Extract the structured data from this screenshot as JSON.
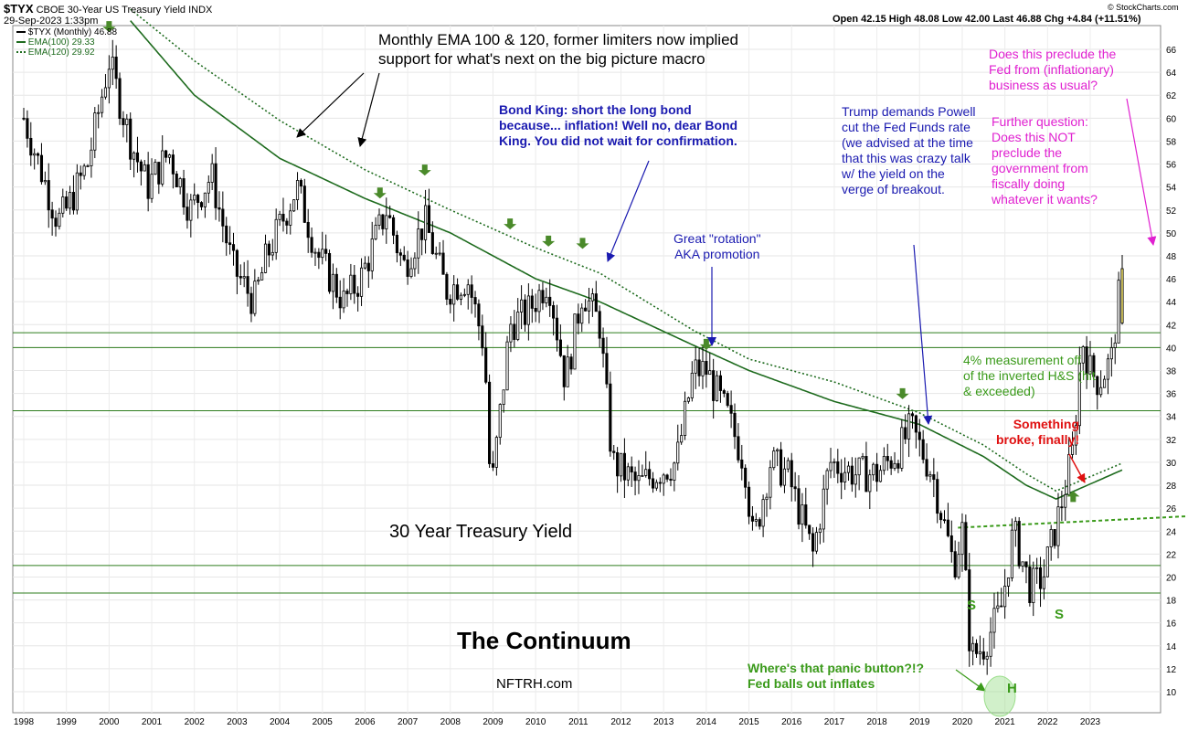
{
  "header": {
    "symbol": "$TYX",
    "name": "CBOE 30-Year US Treasury Yield",
    "exchange": "INDX",
    "date": "29-Sep-2023 1:33pm",
    "ohlc": "Open 42.15  High 48.08  Low 42.00  Last 46.88  Chg +4.84 (+11.51%)",
    "credit": "© StockCharts.com",
    "legend": [
      {
        "label": "$TYX (Monthly) 46.88",
        "color": "#000000"
      },
      {
        "label": "EMA(100) 29.33",
        "color": "#1e6b1e"
      },
      {
        "label": "EMA(120) 29.92",
        "color": "#1e6b1e"
      }
    ]
  },
  "annotations": {
    "ema_note": "Monthly EMA 100 & 120, former limiters now implied\nsupport for what's next on the big picture macro",
    "bond_king": "Bond King: short the long bond\nbecause... inflation! Well no, dear Bond\nKing. You did not wait for confirmation.",
    "rotation": "Great \"rotation\"\nAKA promotion",
    "trump": "Trump demands Powell\ncut the Fed Funds rate\n(we advised at the time\nthat this was crazy talk\nw/ the yield on the\nverge of breakout.",
    "preclude_fed": "Does this preclude the\nFed from (inflationary)\nbusiness as usual?",
    "further_q": "Further question:\nDoes this NOT\npreclude the\ngovernment from\nfiscally doing\nwhatever it wants?",
    "hs_measure": "4% measurement off\nof the inverted H&S (hit\n& exceeded)",
    "broke": "Something\nbroke, finally!",
    "panic": "Where's that panic button?!?\nFed balls out inflates",
    "chart_title": "30 Year Treasury Yield",
    "continuum": "The Continuum",
    "site": "NFTRH.com",
    "s_left": "S",
    "s_right": "S",
    "h": "H"
  },
  "colors": {
    "price": "#000000",
    "ema": "#1e6b1e",
    "hline": "#2e7d1e",
    "green_text": "#3a9a1a",
    "blue_text": "#1a1ab0",
    "magenta": "#e020d0",
    "red_text": "#e01010",
    "arrow_green": "#4a8a2a"
  },
  "chart_data": {
    "type": "candlestick",
    "title": "30 Year Treasury Yield",
    "interval": "monthly",
    "x_ticks": [
      "1998",
      "1999",
      "2000",
      "2001",
      "2002",
      "2003",
      "2004",
      "2005",
      "2006",
      "2007",
      "2008",
      "2009",
      "2010",
      "2011",
      "2012",
      "2013",
      "2014",
      "2015",
      "2016",
      "2017",
      "2018",
      "2019",
      "2020",
      "2021",
      "2022",
      "2023"
    ],
    "y_ticks": [
      10,
      12,
      14,
      16,
      18,
      20,
      22,
      24,
      26,
      28,
      30,
      32,
      34,
      36,
      38,
      40,
      42,
      44,
      46,
      48,
      50,
      52,
      54,
      56,
      58,
      60,
      62,
      64,
      66
    ],
    "ylim": [
      9,
      68
    ],
    "y_axis_side": "right",
    "price_anchors": [
      [
        1998.0,
        60
      ],
      [
        1998.8,
        51
      ],
      [
        1999.0,
        52
      ],
      [
        1999.5,
        56
      ],
      [
        2000.0,
        65
      ],
      [
        2000.5,
        58
      ],
      [
        2000.9,
        54
      ],
      [
        2001.4,
        57
      ],
      [
        2001.9,
        52
      ],
      [
        2002.4,
        55
      ],
      [
        2002.9,
        47
      ],
      [
        2003.4,
        44
      ],
      [
        2003.7,
        48
      ],
      [
        2004.4,
        54
      ],
      [
        2004.9,
        48
      ],
      [
        2005.5,
        44
      ],
      [
        2005.9,
        46
      ],
      [
        2006.5,
        52
      ],
      [
        2006.9,
        47
      ],
      [
        2007.4,
        51
      ],
      [
        2007.9,
        45
      ],
      [
        2008.4,
        46
      ],
      [
        2008.8,
        40
      ],
      [
        2008.95,
        27
      ],
      [
        2009.4,
        42
      ],
      [
        2009.8,
        43
      ],
      [
        2010.3,
        46
      ],
      [
        2010.7,
        37
      ],
      [
        2011.1,
        45
      ],
      [
        2011.5,
        42
      ],
      [
        2011.8,
        30
      ],
      [
        2012.4,
        28
      ],
      [
        2012.8,
        29
      ],
      [
        2013.3,
        30
      ],
      [
        2013.7,
        38
      ],
      [
        2014.0,
        38
      ],
      [
        2014.5,
        34
      ],
      [
        2014.9,
        30
      ],
      [
        2015.1,
        23
      ],
      [
        2015.5,
        30
      ],
      [
        2015.9,
        29
      ],
      [
        2016.5,
        22
      ],
      [
        2016.9,
        30
      ],
      [
        2017.5,
        29
      ],
      [
        2018.0,
        29
      ],
      [
        2018.5,
        31
      ],
      [
        2018.8,
        33
      ],
      [
        2019.3,
        29
      ],
      [
        2019.8,
        21
      ],
      [
        2020.0,
        24
      ],
      [
        2020.2,
        13
      ],
      [
        2020.5,
        14
      ],
      [
        2020.9,
        17
      ],
      [
        2021.2,
        24
      ],
      [
        2021.6,
        19
      ],
      [
        2021.9,
        20
      ],
      [
        2022.3,
        26
      ],
      [
        2022.6,
        31
      ],
      [
        2022.8,
        41
      ],
      [
        2023.0,
        38
      ],
      [
        2023.2,
        37
      ],
      [
        2023.5,
        39
      ],
      [
        2023.75,
        47
      ]
    ],
    "ema100_anchors": [
      [
        2000.5,
        68.5
      ],
      [
        2002.0,
        62
      ],
      [
        2004.0,
        56.5
      ],
      [
        2006.0,
        53
      ],
      [
        2008.0,
        50
      ],
      [
        2010.0,
        46
      ],
      [
        2011.5,
        44
      ],
      [
        2013.7,
        40.2
      ],
      [
        2015.0,
        38
      ],
      [
        2017.0,
        35.3
      ],
      [
        2019.0,
        33.3
      ],
      [
        2020.5,
        30.5
      ],
      [
        2021.5,
        28
      ],
      [
        2022.2,
        26.8
      ],
      [
        2023.75,
        29.33
      ]
    ],
    "ema120_anchors": [
      [
        2000.5,
        69.5
      ],
      [
        2002.0,
        65
      ],
      [
        2004.0,
        59.8
      ],
      [
        2006.0,
        55.5
      ],
      [
        2008.0,
        52
      ],
      [
        2010.0,
        48.7
      ],
      [
        2011.5,
        46.5
      ],
      [
        2013.7,
        41.5
      ],
      [
        2015.0,
        39
      ],
      [
        2017.0,
        37
      ],
      [
        2019.0,
        34.3
      ],
      [
        2020.5,
        31.5
      ],
      [
        2021.5,
        29
      ],
      [
        2022.2,
        27.5
      ],
      [
        2023.75,
        29.92
      ]
    ],
    "horizontal_lines": [
      41.3,
      40.0,
      34.5,
      21.0,
      18.6
    ],
    "neckline": [
      [
        2019.9,
        24.3
      ],
      [
        2024.0,
        25.3
      ]
    ],
    "green_arrow_points": [
      [
        2000.0,
        67.5
      ],
      [
        2006.35,
        53.0
      ],
      [
        2007.4,
        55.0
      ],
      [
        2009.4,
        50.3
      ],
      [
        2010.3,
        48.8
      ],
      [
        2011.1,
        48.6
      ],
      [
        2014.0,
        39.8
      ],
      [
        2018.6,
        35.5
      ],
      [
        2022.6,
        27.5
      ]
    ],
    "last_bar": {
      "open": 42.15,
      "high": 48.08,
      "low": 42.0,
      "close": 46.88
    }
  }
}
